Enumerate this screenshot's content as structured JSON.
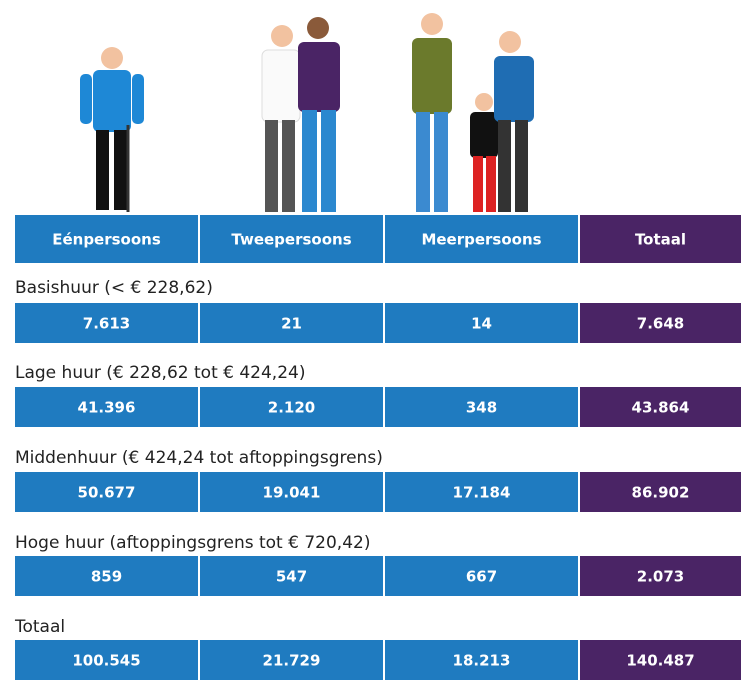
{
  "table": {
    "columns": [
      "Eénpersoons",
      "Tweepersoons",
      "Meerpersoons",
      "Totaal"
    ],
    "rows": [
      {
        "label": "Basishuur (< € 228,62)",
        "cells": [
          "7.613",
          "21",
          "14",
          "7.648"
        ]
      },
      {
        "label": "Lage huur (€ 228,62 tot € 424,24)",
        "cells": [
          "41.396",
          "2.120",
          "348",
          "43.864"
        ]
      },
      {
        "label": "Middenhuur (€ 424,24 tot aftoppingsgrens)",
        "cells": [
          "50.677",
          "19.041",
          "17.184",
          "86.902"
        ]
      },
      {
        "label": "Hoge huur (aftoppingsgrens tot € 720,42)",
        "cells": [
          "859",
          "547",
          "667",
          "2.073"
        ]
      },
      {
        "label": "Totaal",
        "cells": [
          "100.545",
          "21.729",
          "18.213",
          "140.487"
        ]
      }
    ]
  }
}
